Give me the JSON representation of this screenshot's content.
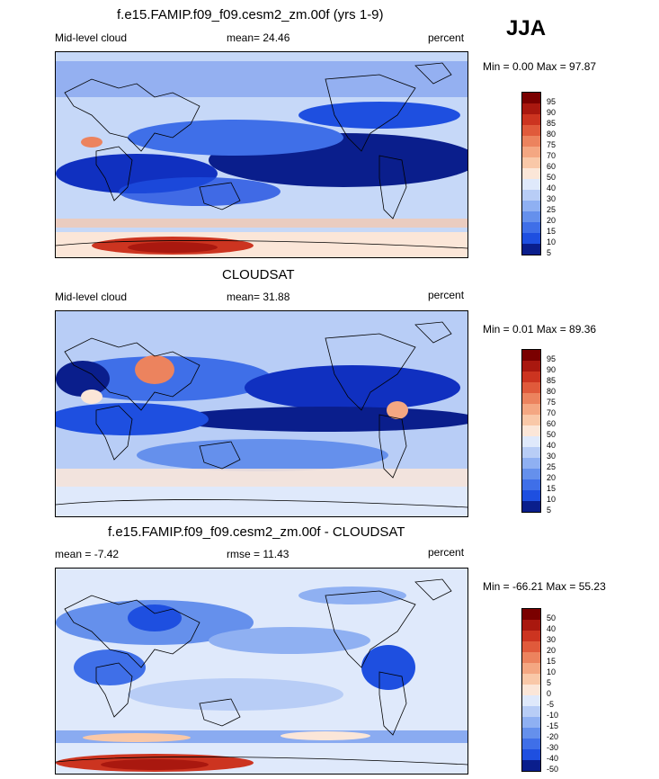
{
  "season": "JJA",
  "colors": {
    "negative_scale": [
      "#0a1e8c",
      "#1030c0",
      "#1e4fe0",
      "#3f6fe8",
      "#6590ec",
      "#8fb0f2",
      "#b8cdf6",
      "#dfe9fb"
    ],
    "positive_scale": [
      "#fbe6d8",
      "#f9c8a8",
      "#f4a782",
      "#ec835e",
      "#e05a3b",
      "#cc3420",
      "#a9180f",
      "#7a0000"
    ]
  },
  "panels": [
    {
      "title": "f.e15.FAMIP.f09_f09.cesm2_zm.00f (yrs 1-9)",
      "left_label": "Mid-level cloud",
      "center_label": "mean=  24.46",
      "right_label": "percent",
      "minmax": "Min =   0.00 Max =  97.87",
      "colorbar_labels": [
        "95",
        "90",
        "85",
        "80",
        "75",
        "70",
        "60",
        "50",
        "40",
        "30",
        "25",
        "20",
        "15",
        "10",
        "5"
      ]
    },
    {
      "title": "CLOUDSAT",
      "left_label": "Mid-level cloud",
      "center_label": "mean=  31.88",
      "right_label": "percent",
      "minmax": "Min =   0.01 Max =  89.36",
      "colorbar_labels": [
        "95",
        "90",
        "85",
        "80",
        "75",
        "70",
        "60",
        "50",
        "40",
        "30",
        "25",
        "20",
        "15",
        "10",
        "5"
      ]
    },
    {
      "title": "f.e15.FAMIP.f09_f09.cesm2_zm.00f - CLOUDSAT",
      "left_label": "mean =  -7.42",
      "center_label": "rmse =  11.43",
      "right_label": "percent",
      "minmax": "Min = -66.21 Max =  55.23",
      "colorbar_labels": [
        "50",
        "40",
        "30",
        "20",
        "15",
        "10",
        "5",
        "0",
        "-5",
        "-10",
        "-15",
        "-20",
        "-30",
        "-40",
        "-50"
      ]
    }
  ]
}
